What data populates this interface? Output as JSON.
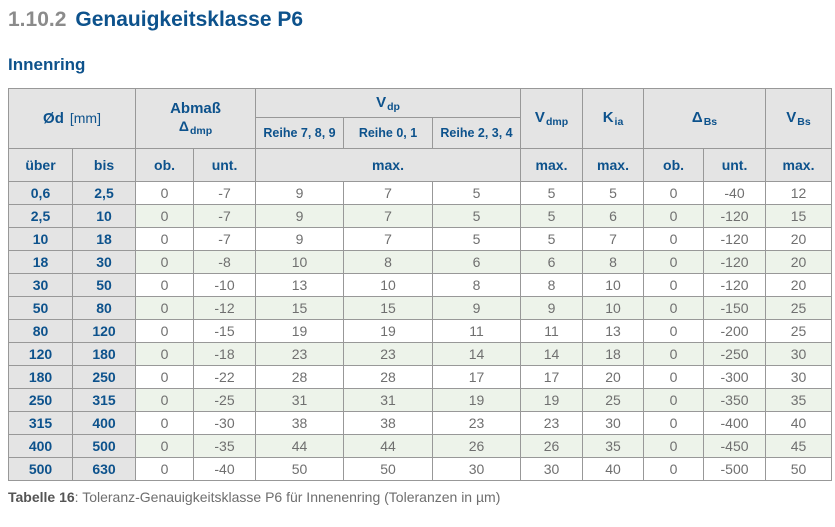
{
  "page": {
    "title_number": "1.10.2",
    "title": "Genauigkeitsklasse P6",
    "subtitle": "Innenring",
    "caption_label": "Tabelle 16",
    "caption_text": ": Toleranz-Genauigkeitsklasse P6 für Innenenring (Toleranzen in µm)"
  },
  "colors": {
    "accent_blue": "#0d528c",
    "header_gray": "#e4e4e4",
    "row_green": "#edf3ea",
    "border_gray": "#989898",
    "value_gray": "#6f6f6f"
  },
  "table": {
    "header": {
      "od": {
        "main": "Ød",
        "unit": "[mm]"
      },
      "abmass": {
        "line1": "Abmaß",
        "delta": "Δ",
        "sub": "dmp"
      },
      "vdp": {
        "main": "V",
        "sub": "dp"
      },
      "reihe": [
        "Reihe 7, 8, 9",
        "Reihe 0, 1",
        "Reihe 2, 3, 4"
      ],
      "vdmp": {
        "main": "V",
        "sub": "dmp"
      },
      "kia": {
        "main": "K",
        "sub": "ia"
      },
      "dbs": {
        "main": "Δ",
        "sub": "Bs"
      },
      "vbs": {
        "main": "V",
        "sub": "Bs"
      },
      "row3": [
        "über",
        "bis",
        "ob.",
        "unt.",
        "max.",
        "max.",
        "max.",
        "ob.",
        "unt.",
        "max."
      ]
    },
    "rows": [
      [
        "0,6",
        "2,5",
        "0",
        "-7",
        "9",
        "7",
        "5",
        "5",
        "5",
        "0",
        "-40",
        "12"
      ],
      [
        "2,5",
        "10",
        "0",
        "-7",
        "9",
        "7",
        "5",
        "5",
        "6",
        "0",
        "-120",
        "15"
      ],
      [
        "10",
        "18",
        "0",
        "-7",
        "9",
        "7",
        "5",
        "5",
        "7",
        "0",
        "-120",
        "20"
      ],
      [
        "18",
        "30",
        "0",
        "-8",
        "10",
        "8",
        "6",
        "6",
        "8",
        "0",
        "-120",
        "20"
      ],
      [
        "30",
        "50",
        "0",
        "-10",
        "13",
        "10",
        "8",
        "8",
        "10",
        "0",
        "-120",
        "20"
      ],
      [
        "50",
        "80",
        "0",
        "-12",
        "15",
        "15",
        "9",
        "9",
        "10",
        "0",
        "-150",
        "25"
      ],
      [
        "80",
        "120",
        "0",
        "-15",
        "19",
        "19",
        "11",
        "11",
        "13",
        "0",
        "-200",
        "25"
      ],
      [
        "120",
        "180",
        "0",
        "-18",
        "23",
        "23",
        "14",
        "14",
        "18",
        "0",
        "-250",
        "30"
      ],
      [
        "180",
        "250",
        "0",
        "-22",
        "28",
        "28",
        "17",
        "17",
        "20",
        "0",
        "-300",
        "30"
      ],
      [
        "250",
        "315",
        "0",
        "-25",
        "31",
        "31",
        "19",
        "19",
        "25",
        "0",
        "-350",
        "35"
      ],
      [
        "315",
        "400",
        "0",
        "-30",
        "38",
        "38",
        "23",
        "23",
        "30",
        "0",
        "-400",
        "40"
      ],
      [
        "400",
        "500",
        "0",
        "-35",
        "44",
        "44",
        "26",
        "26",
        "35",
        "0",
        "-450",
        "45"
      ],
      [
        "500",
        "630",
        "0",
        "-40",
        "50",
        "50",
        "30",
        "30",
        "40",
        "0",
        "-500",
        "50"
      ]
    ]
  }
}
